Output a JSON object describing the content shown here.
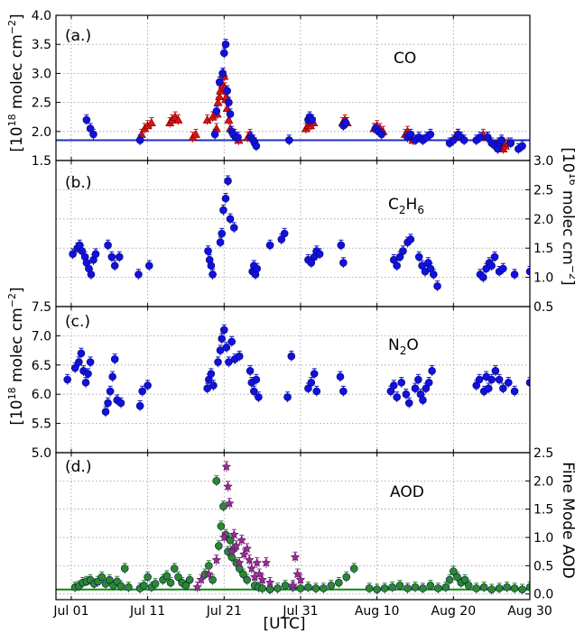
{
  "xaxis": {
    "label": "[UTC]",
    "tick_labels": [
      "Jul 01",
      "Jul 11",
      "Jul 21",
      "Jul 31",
      "Aug 10",
      "Aug 20",
      "Aug 30"
    ],
    "tick_days": [
      1,
      11,
      21,
      31,
      41,
      51,
      61
    ],
    "range_days": [
      -1,
      61
    ],
    "note_days": "day index: Jul 01 = 1, Aug 01 = 32"
  },
  "chart_data": [
    {
      "type": "scatter",
      "panel": "a",
      "panel_label": "(a.)",
      "species_label": "CO",
      "ylabel": "[10^18 molec cm^-2]",
      "ylabel_parts": {
        "prefix": "[10",
        "exp1": "18",
        "mid": " molec cm",
        "exp2": "−2",
        "suffix": "]"
      },
      "ylim": [
        1.5,
        4.0
      ],
      "yticks": [
        1.5,
        2.0,
        2.5,
        3.0,
        3.5,
        4.0
      ],
      "ytick_labels": [
        "1.5",
        "2.0",
        "2.5",
        "3.0",
        "3.5",
        "4.0"
      ],
      "axis_side": "left",
      "reference_line": 1.85,
      "reference_color": "#1f2fbf",
      "series": [
        {
          "name": "",
          "color": "#e01010",
          "marker": "triangle",
          "x": [
            10.2,
            10.6,
            11.0,
            11.5,
            13.9,
            14.2,
            14.6,
            15.0,
            16.9,
            17.3,
            18.8,
            19.5,
            20.0,
            20.1,
            20.2,
            20.4,
            20.5,
            20.6,
            20.8,
            20.9,
            21.0,
            21.1,
            21.2,
            21.3,
            21.4,
            21.6,
            21.8,
            22.4,
            22.9,
            24.1,
            24.4,
            31.7,
            32.0,
            32.3,
            32.7,
            36.5,
            36.8,
            37.1,
            40.6,
            41.0,
            41.4,
            41.8,
            44.7,
            45.0,
            45.3,
            45.7,
            51.3,
            51.6,
            54.9,
            55.4,
            56.9,
            57.3,
            57.5,
            57.8,
            58.2
          ],
          "y": [
            1.95,
            2.05,
            2.1,
            2.15,
            2.15,
            2.2,
            2.25,
            2.2,
            1.9,
            1.95,
            2.2,
            2.25,
            2.05,
            2.3,
            2.5,
            2.6,
            2.7,
            2.85,
            2.8,
            3.0,
            2.95,
            2.75,
            2.55,
            2.6,
            2.4,
            2.2,
            2.05,
            1.95,
            1.85,
            1.9,
            1.95,
            2.05,
            2.1,
            2.1,
            2.15,
            2.15,
            2.2,
            2.15,
            2.05,
            2.1,
            2.05,
            2.0,
            1.95,
            2.0,
            1.9,
            1.85,
            1.9,
            1.95,
            1.95,
            1.9,
            1.8,
            1.75,
            1.7,
            1.75,
            1.8
          ]
        },
        {
          "name": "",
          "color": "#1010e0",
          "marker": "circle",
          "x": [
            3.0,
            3.5,
            3.9,
            10.0,
            19.8,
            20.0,
            20.4,
            20.8,
            21.0,
            21.2,
            21.4,
            21.6,
            21.8,
            22.0,
            22.2,
            22.5,
            22.8,
            24.5,
            24.8,
            25.0,
            25.2,
            29.5,
            32.0,
            32.2,
            32.5,
            36.6,
            36.9,
            40.8,
            41.2,
            41.6,
            45.0,
            45.4,
            46.0,
            46.5,
            47.0,
            47.5,
            48.0,
            50.5,
            51.0,
            51.6,
            52.0,
            52.4,
            54.0,
            54.5,
            55.5,
            56.0,
            56.5,
            56.8,
            57.0,
            57.3,
            58.5,
            59.5,
            60.0,
            62.0
          ],
          "y": [
            2.2,
            2.05,
            1.95,
            1.85,
            1.95,
            2.35,
            2.85,
            3.0,
            3.35,
            3.5,
            2.7,
            2.5,
            2.3,
            2.0,
            1.95,
            1.9,
            1.9,
            1.9,
            1.85,
            1.8,
            1.75,
            1.85,
            2.2,
            2.25,
            2.2,
            2.1,
            2.15,
            2.05,
            2.0,
            1.95,
            1.9,
            1.95,
            1.85,
            1.9,
            1.85,
            1.9,
            1.95,
            1.8,
            1.85,
            1.95,
            1.9,
            1.85,
            1.85,
            1.9,
            1.9,
            1.8,
            1.75,
            1.7,
            1.8,
            1.85,
            1.8,
            1.7,
            1.75,
            1.8
          ]
        }
      ]
    },
    {
      "type": "scatter",
      "panel": "b",
      "panel_label": "(b.)",
      "species_label": "C2H6",
      "species_parts": {
        "base1": "C",
        "sub1": "2",
        "base2": "H",
        "sub2": "6"
      },
      "ylabel": "[10^16 molec cm^-2]",
      "ylabel_parts": {
        "prefix": "[10",
        "exp1": "16",
        "mid": " molec cm",
        "exp2": "−2",
        "suffix": "]"
      },
      "ylim": [
        0.5,
        3.0
      ],
      "yticks": [
        0.5,
        1.0,
        1.5,
        2.0,
        2.5,
        3.0
      ],
      "ytick_labels": [
        "0.5",
        "1.0",
        "1.5",
        "2.0",
        "2.5",
        "3.0"
      ],
      "axis_side": "right",
      "series": [
        {
          "name": "",
          "color": "#1010e0",
          "marker": "circle",
          "x": [
            1.2,
            1.8,
            2.1,
            2.4,
            2.8,
            3.0,
            3.3,
            3.6,
            3.9,
            4.2,
            5.8,
            6.3,
            6.7,
            7.3,
            9.8,
            11.2,
            18.9,
            19.1,
            19.3,
            19.5,
            20.5,
            20.7,
            20.9,
            21.2,
            21.5,
            21.8,
            22.3,
            24.7,
            24.9,
            25.1,
            25.3,
            27.0,
            28.5,
            28.9,
            32.0,
            32.4,
            32.8,
            33.1,
            33.5,
            36.3,
            36.6,
            43.2,
            43.6,
            44.0,
            44.4,
            45.0,
            45.4,
            46.5,
            46.9,
            47.3,
            47.7,
            48.0,
            48.4,
            48.9,
            54.5,
            54.9,
            55.3,
            55.7,
            56.0,
            56.4,
            57.0,
            57.5,
            59.0,
            61.0
          ],
          "y": [
            1.4,
            1.5,
            1.55,
            1.45,
            1.35,
            1.25,
            1.15,
            1.05,
            1.3,
            1.4,
            1.55,
            1.35,
            1.2,
            1.35,
            1.05,
            1.2,
            1.45,
            1.3,
            1.2,
            1.05,
            1.6,
            1.75,
            2.15,
            2.35,
            2.65,
            2.0,
            1.85,
            1.1,
            1.2,
            1.05,
            1.15,
            1.55,
            1.65,
            1.75,
            1.3,
            1.25,
            1.35,
            1.45,
            1.4,
            1.55,
            1.25,
            1.3,
            1.2,
            1.35,
            1.45,
            1.6,
            1.65,
            1.35,
            1.2,
            1.1,
            1.25,
            1.15,
            1.05,
            0.85,
            1.05,
            1.0,
            1.15,
            1.25,
            1.2,
            1.35,
            1.1,
            1.15,
            1.05,
            1.1
          ]
        }
      ]
    },
    {
      "type": "scatter",
      "panel": "c",
      "panel_label": "(c.)",
      "species_label": "N2O",
      "species_parts": {
        "base1": "N",
        "sub1": "2",
        "base2": "O"
      },
      "ylabel": "[10^18 molec cm^-2]",
      "ylabel_parts": {
        "prefix": "[10",
        "exp1": "18",
        "mid": " molec cm",
        "exp2": "−2",
        "suffix": "]"
      },
      "ylim": [
        5.0,
        7.5
      ],
      "yticks": [
        5.0,
        5.5,
        6.0,
        6.5,
        7.0,
        7.5
      ],
      "ytick_labels": [
        "5.0",
        "5.5",
        "6.0",
        "6.5",
        "7.0",
        "7.5"
      ],
      "axis_side": "left",
      "series": [
        {
          "name": "",
          "color": "#1010e0",
          "marker": "circle",
          "x": [
            0.5,
            1.5,
            2.0,
            2.3,
            2.6,
            2.9,
            3.2,
            3.5,
            5.5,
            5.8,
            6.1,
            6.4,
            6.7,
            7.0,
            7.5,
            10.0,
            10.3,
            11.0,
            18.8,
            19.0,
            19.3,
            19.6,
            20.2,
            20.5,
            20.7,
            21.0,
            21.3,
            21.6,
            22.0,
            22.4,
            23.0,
            24.4,
            24.6,
            24.9,
            25.2,
            25.5,
            29.3,
            29.8,
            32.0,
            32.4,
            32.8,
            33.1,
            36.2,
            36.6,
            42.8,
            43.2,
            43.6,
            44.2,
            44.8,
            45.2,
            46.0,
            46.4,
            46.7,
            47.0,
            47.4,
            47.8,
            48.2,
            54.0,
            54.4,
            55.0,
            55.3,
            55.6,
            56.0,
            56.5,
            57.0,
            57.5,
            58.2,
            59.0,
            61.0
          ],
          "y": [
            6.25,
            6.45,
            6.55,
            6.7,
            6.4,
            6.2,
            6.35,
            6.55,
            5.7,
            5.85,
            6.05,
            6.3,
            6.6,
            5.9,
            5.85,
            5.8,
            6.05,
            6.15,
            6.1,
            6.25,
            6.35,
            6.15,
            6.55,
            6.75,
            6.95,
            7.1,
            6.8,
            6.55,
            6.9,
            6.6,
            6.65,
            6.4,
            6.2,
            6.05,
            6.25,
            5.95,
            5.95,
            6.65,
            6.1,
            6.2,
            6.35,
            6.05,
            6.3,
            6.05,
            6.05,
            6.15,
            5.95,
            6.2,
            6.0,
            5.85,
            6.1,
            6.25,
            6.0,
            5.9,
            6.1,
            6.2,
            6.4,
            6.15,
            6.25,
            6.05,
            6.3,
            6.1,
            6.25,
            6.4,
            6.25,
            6.1,
            6.2,
            6.05,
            6.2
          ]
        }
      ]
    },
    {
      "type": "scatter",
      "panel": "d",
      "panel_label": "(d.)",
      "species_label": "AOD",
      "ylabel": "Fine Mode AOD",
      "ylim": [
        -0.1,
        2.5
      ],
      "yticks": [
        0.0,
        0.5,
        1.0,
        1.5,
        2.0,
        2.5
      ],
      "ytick_labels": [
        "0.0",
        "0.5",
        "1.0",
        "1.5",
        "2.0",
        "2.5"
      ],
      "axis_side": "right",
      "reference_line": 0.08,
      "reference_color": "#118811",
      "series": [
        {
          "name": "",
          "color": "#2a8a2a",
          "marker": "circle",
          "x": [
            1.5,
            2.0,
            2.5,
            3.0,
            3.5,
            4.0,
            4.5,
            5.0,
            5.5,
            6.0,
            6.5,
            7.0,
            7.5,
            8.0,
            8.5,
            10.0,
            10.5,
            11.0,
            11.5,
            12.0,
            13.0,
            13.5,
            14.0,
            14.5,
            15.0,
            15.5,
            16.0,
            16.5,
            18.5,
            19.0,
            19.5,
            20.0,
            20.3,
            20.6,
            20.9,
            21.2,
            21.5,
            21.8,
            22.0,
            22.3,
            22.6,
            23.0,
            23.5,
            24.0,
            25.0,
            25.5,
            26.0,
            27.0,
            28.0,
            29.0,
            30.0,
            31.0,
            32.0,
            33.0,
            34.0,
            35.0,
            36.0,
            37.0,
            38.0,
            40.0,
            41.0,
            42.0,
            43.0,
            44.0,
            45.0,
            46.0,
            47.0,
            48.0,
            49.0,
            50.0,
            50.5,
            51.0,
            51.5,
            52.0,
            52.5,
            53.0,
            54.0,
            55.0,
            56.0,
            57.0,
            58.0,
            59.0,
            60.0,
            61.0
          ],
          "y": [
            0.12,
            0.14,
            0.2,
            0.22,
            0.25,
            0.18,
            0.22,
            0.3,
            0.18,
            0.25,
            0.15,
            0.22,
            0.14,
            0.45,
            0.12,
            0.1,
            0.15,
            0.3,
            0.12,
            0.18,
            0.25,
            0.32,
            0.2,
            0.45,
            0.3,
            0.2,
            0.15,
            0.25,
            0.35,
            0.5,
            0.25,
            2.0,
            0.85,
            1.2,
            1.55,
            1.05,
            0.75,
            0.95,
            0.65,
            0.8,
            0.55,
            0.45,
            0.35,
            0.25,
            0.15,
            0.12,
            0.1,
            0.08,
            0.1,
            0.15,
            0.12,
            0.1,
            0.12,
            0.1,
            0.1,
            0.15,
            0.2,
            0.3,
            0.45,
            0.1,
            0.08,
            0.1,
            0.12,
            0.15,
            0.1,
            0.12,
            0.1,
            0.15,
            0.1,
            0.12,
            0.25,
            0.4,
            0.3,
            0.2,
            0.25,
            0.15,
            0.1,
            0.12,
            0.08,
            0.1,
            0.12,
            0.1,
            0.08,
            0.12
          ]
        },
        {
          "name": "",
          "color": "#9a2a9a",
          "marker": "star",
          "x": [
            17.5,
            18.0,
            19.0,
            20.0,
            21.0,
            21.3,
            21.5,
            21.7,
            22.0,
            22.3,
            22.6,
            23.0,
            23.3,
            23.6,
            24.0,
            24.3,
            24.6,
            25.0,
            25.3,
            25.6,
            26.0,
            26.5,
            27.0,
            30.0,
            30.3,
            30.6,
            31.0
          ],
          "y": [
            0.12,
            0.25,
            0.35,
            0.6,
            1.0,
            2.25,
            1.9,
            1.6,
            0.75,
            1.05,
            0.85,
            0.55,
            0.95,
            0.7,
            0.8,
            0.6,
            0.45,
            0.3,
            0.55,
            0.35,
            0.25,
            0.55,
            0.2,
            0.15,
            0.65,
            0.35,
            0.25
          ]
        }
      ]
    }
  ]
}
